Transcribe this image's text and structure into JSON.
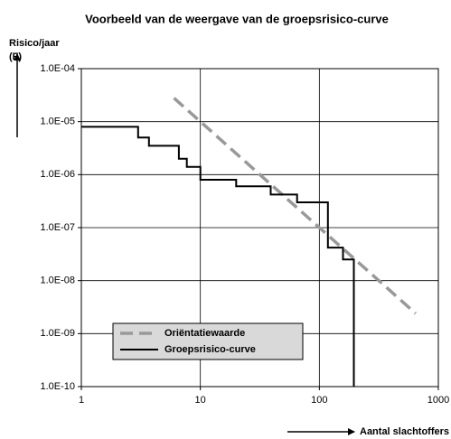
{
  "chart_data": {
    "type": "line",
    "title": "Voorbeeld van de weergave van de groepsrisico-curve",
    "y_label": "Risico/jaar",
    "y_label_2": "(F)",
    "x_label": "Aantal slachtoffers (N)",
    "x_log": true,
    "y_log": true,
    "grid": true,
    "xlim": [
      1,
      1000
    ],
    "xticks": [
      1,
      10,
      100,
      1000
    ],
    "ylim": [
      1e-10,
      0.0001
    ],
    "yticks": [
      {
        "value": 1e-10,
        "label": "1.0E-10"
      },
      {
        "value": 1e-09,
        "label": "1.0E-09"
      },
      {
        "value": 1e-08,
        "label": "1.0E-08"
      },
      {
        "value": 1e-07,
        "label": "1.0E-07"
      },
      {
        "value": 1e-06,
        "label": "1.0E-06"
      },
      {
        "value": 1e-05,
        "label": "1.0E-05"
      },
      {
        "value": 0.0001,
        "label": "1.0E-04"
      }
    ],
    "legend": "bottom-left",
    "series": [
      {
        "name": "Oriëntatiewaarde",
        "color": "#999999",
        "dash": true,
        "x": [
          6,
          645
        ],
        "values": [
          2.78e-05,
          2.4e-09
        ]
      },
      {
        "name": "Groepsrisico-curve",
        "color": "#000000",
        "dash": false,
        "x": [
          1,
          3,
          3,
          3.7,
          3.7,
          6.6,
          6.6,
          7.7,
          7.7,
          10,
          10,
          20,
          20,
          39,
          39,
          65,
          65,
          118,
          118,
          158,
          158,
          195,
          195
        ],
        "values": [
          8e-06,
          8e-06,
          5e-06,
          5e-06,
          3.5e-06,
          3.5e-06,
          2e-06,
          2e-06,
          1.4e-06,
          1.4e-06,
          8e-07,
          8e-07,
          6e-07,
          6e-07,
          4.2e-07,
          4.2e-07,
          3e-07,
          3e-07,
          4.2e-08,
          4.2e-08,
          2.5e-08,
          2.5e-08,
          1e-10
        ]
      }
    ]
  }
}
